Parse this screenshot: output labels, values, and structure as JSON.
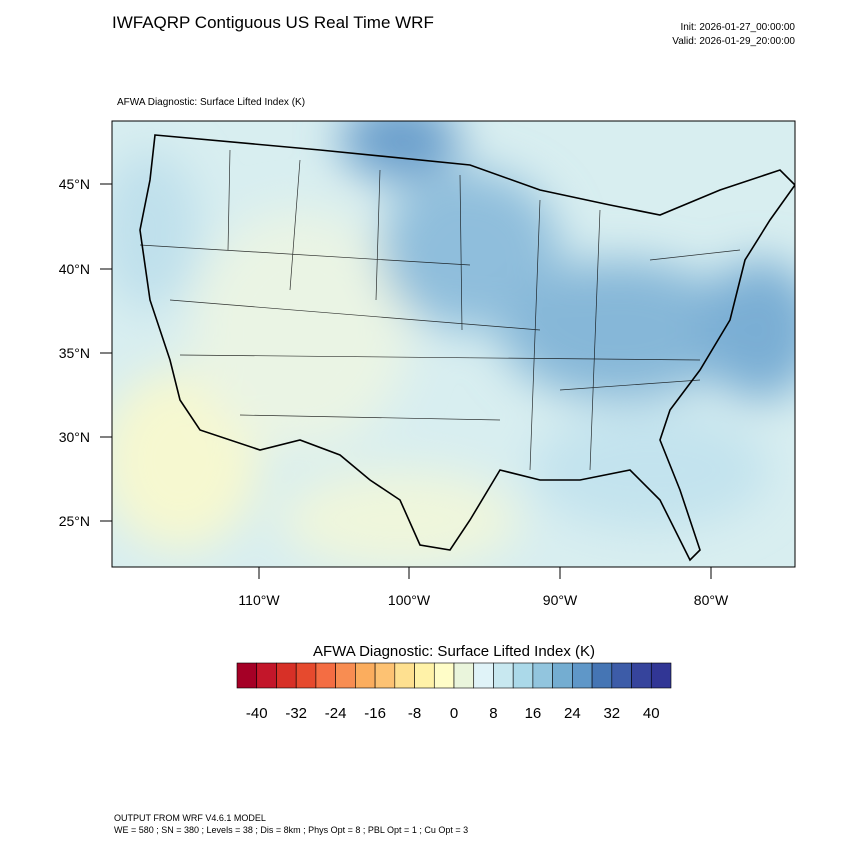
{
  "header": {
    "title": "IWFAQRP Contiguous US Real Time WRF",
    "init": "Init: 2026-01-27_00:00:00",
    "valid": "Valid: 2026-01-29_20:00:00",
    "subtitle": "AFWA Diagnostic: Surface Lifted Index   (K)"
  },
  "map": {
    "lat_labels": [
      "45°N",
      "40°N",
      "35°N",
      "30°N",
      "25°N"
    ],
    "lon_labels": [
      "110°W",
      "100°W",
      "90°W",
      "80°W"
    ]
  },
  "colorbar": {
    "title": "AFWA Diagnostic: Surface Lifted Index  (K)",
    "range": [
      -44,
      44
    ],
    "ticks": [
      -40,
      -32,
      -24,
      -16,
      -8,
      0,
      8,
      16,
      24,
      32,
      40
    ],
    "colors": [
      "#a50026",
      "#c3162a",
      "#d73027",
      "#e64a2e",
      "#f46d43",
      "#f88d52",
      "#fbad5e",
      "#fdc273",
      "#fee090",
      "#fff2a8",
      "#fffdc8",
      "#eaf5dc",
      "#e0f3f8",
      "#c8e8f0",
      "#abd9e9",
      "#92c5de",
      "#74add1",
      "#5f97c8",
      "#4575b4",
      "#3d5ca8",
      "#36449c",
      "#313695"
    ]
  },
  "footer": {
    "line1": "OUTPUT FROM WRF V4.6.1 MODEL",
    "line2": "WE = 580 ; SN = 380 ; Levels = 38 ; Dis = 8km ; Phys Opt = 8 ; PBL Opt = 1 ; Cu Opt = 3"
  }
}
